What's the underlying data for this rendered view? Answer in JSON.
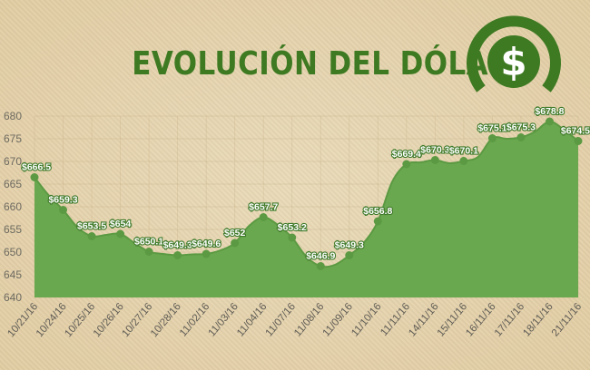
{
  "chart_data": {
    "type": "area",
    "title": "EVOLUCIÓN DEL DÓLAR",
    "xlabel": "",
    "ylabel": "",
    "ylim": [
      640,
      680
    ],
    "yticks": [
      640,
      645,
      650,
      655,
      660,
      665,
      670,
      675,
      680
    ],
    "grid": true,
    "legend": "none",
    "icon": "dollar-coin-icon",
    "colors": {
      "fill": "#6aa84f",
      "line": "#5b9a42",
      "text": "#ffffff",
      "label_outline": "#3f7a2a",
      "title": "#3e7a22"
    },
    "categories": [
      "10/21/16",
      "10/24/16",
      "10/25/16",
      "10/26/16",
      "10/27/16",
      "10/28/16",
      "11/02/16",
      "11/03/16",
      "11/04/16",
      "11/07/16",
      "11/08/16",
      "11/09/16",
      "11/10/16",
      "11/11/16",
      "14/11/16",
      "15/11/16",
      "16/11/16",
      "17/11/16",
      "18/11/16",
      "21/11/16"
    ],
    "points": [
      {
        "x": 0,
        "y": 666.5,
        "label": "$666.5"
      },
      {
        "x": 0.5,
        "y": 662.5,
        "label": ""
      },
      {
        "x": 1,
        "y": 659.3,
        "label": "$659.3"
      },
      {
        "x": 1.5,
        "y": 655.5,
        "label": ""
      },
      {
        "x": 2,
        "y": 653.5,
        "label": "$653.5"
      },
      {
        "x": 2.5,
        "y": 653.8,
        "label": ""
      },
      {
        "x": 3,
        "y": 654,
        "label": "$654"
      },
      {
        "x": 3.5,
        "y": 652.0,
        "label": ""
      },
      {
        "x": 4,
        "y": 650.1,
        "label": "$650.1"
      },
      {
        "x": 4.5,
        "y": 649.6,
        "label": ""
      },
      {
        "x": 5,
        "y": 649.3,
        "label": "$649.3"
      },
      {
        "x": 5.5,
        "y": 649.5,
        "label": ""
      },
      {
        "x": 6,
        "y": 649.6,
        "label": "$649.6"
      },
      {
        "x": 6.5,
        "y": 650.4,
        "label": ""
      },
      {
        "x": 7,
        "y": 652,
        "label": "$652"
      },
      {
        "x": 7.5,
        "y": 655.8,
        "label": ""
      },
      {
        "x": 8,
        "y": 657.7,
        "label": "$657.7"
      },
      {
        "x": 8.5,
        "y": 656.0,
        "label": ""
      },
      {
        "x": 9,
        "y": 653.2,
        "label": "$653.2"
      },
      {
        "x": 9.5,
        "y": 649.0,
        "label": ""
      },
      {
        "x": 10,
        "y": 646.9,
        "label": "$646.9"
      },
      {
        "x": 10.5,
        "y": 647.2,
        "label": ""
      },
      {
        "x": 11,
        "y": 649.3,
        "label": "$649.3"
      },
      {
        "x": 11.5,
        "y": 652.0,
        "label": ""
      },
      {
        "x": 12,
        "y": 656.8,
        "label": "$656.8"
      },
      {
        "x": 12.5,
        "y": 665.5,
        "label": ""
      },
      {
        "x": 13,
        "y": 669.4,
        "label": "$669.4"
      },
      {
        "x": 13.5,
        "y": 669.8,
        "label": ""
      },
      {
        "x": 14,
        "y": 670.3,
        "label": "$670.3"
      },
      {
        "x": 14.5,
        "y": 669.6,
        "label": ""
      },
      {
        "x": 15,
        "y": 670.1,
        "label": "$670.1"
      },
      {
        "x": 15.5,
        "y": 671.0,
        "label": ""
      },
      {
        "x": 16,
        "y": 675.1,
        "label": "$675.1"
      },
      {
        "x": 16.5,
        "y": 675.0,
        "label": ""
      },
      {
        "x": 17,
        "y": 675.3,
        "label": "$675.3"
      },
      {
        "x": 17.5,
        "y": 676.6,
        "label": ""
      },
      {
        "x": 18,
        "y": 678.8,
        "label": "$678.8"
      },
      {
        "x": 18.5,
        "y": 677.0,
        "label": ""
      },
      {
        "x": 19,
        "y": 674.5,
        "label": "$674.5"
      }
    ]
  }
}
